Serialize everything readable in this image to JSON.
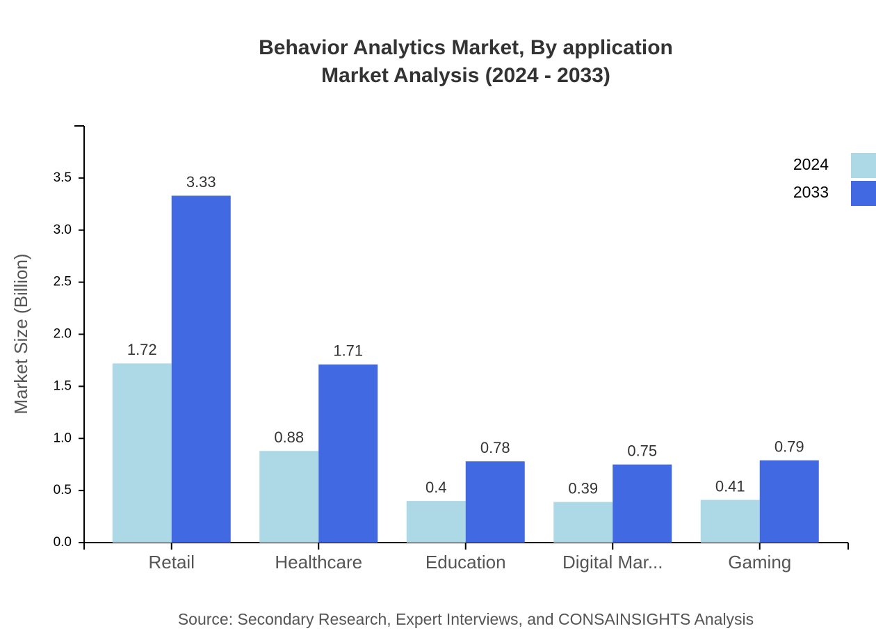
{
  "chart_data": {
    "type": "bar",
    "title": "Behavior Analytics Market, By application",
    "subtitle": "Market Analysis (2024 - 2033)",
    "y_label": "Market Size (Billion)",
    "source": "Source: Secondary Research, Expert Interviews, and CONSAINSIGHTS Analysis",
    "categories": [
      "Retail",
      "Healthcare",
      "Education",
      "Digital Mar...",
      "Gaming"
    ],
    "series": [
      {
        "name": "2024",
        "color": "#add8e6",
        "values": [
          1.72,
          0.88,
          0.4,
          0.39,
          0.41
        ]
      },
      {
        "name": "2033",
        "color": "#4169e1",
        "values": [
          3.33,
          1.71,
          0.78,
          0.75,
          0.79
        ]
      }
    ],
    "ylim": [
      0,
      4
    ],
    "yticks": [
      {
        "value": 0,
        "label": "0.0"
      },
      0.5,
      {
        "value": 1,
        "label": "1.0"
      },
      1.5,
      {
        "value": 2,
        "label": "2.0"
      },
      2.5,
      {
        "value": 3,
        "label": "3.0"
      },
      3.5
    ],
    "legend": "top-right"
  }
}
